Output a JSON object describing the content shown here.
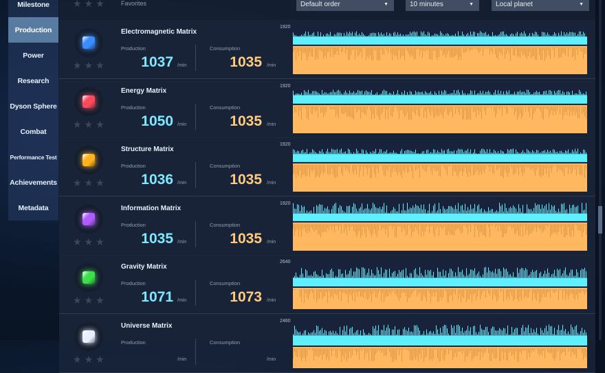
{
  "sidebar": {
    "items": [
      {
        "label": "Milestone",
        "active": false
      },
      {
        "label": "Production",
        "active": true
      },
      {
        "label": "Power",
        "active": false
      },
      {
        "label": "Research",
        "active": false
      },
      {
        "label": "Dyson Sphere",
        "active": false
      },
      {
        "label": "Combat",
        "active": false
      },
      {
        "label": "Performance Test",
        "active": false
      },
      {
        "label": "Achievements",
        "active": false
      },
      {
        "label": "Metadata",
        "active": false
      }
    ]
  },
  "toolbar": {
    "favorites_label": "Favorites",
    "sort": "Default order",
    "time_range": "10 minutes",
    "scope": "Local planet"
  },
  "labels": {
    "production": "Production",
    "consumption": "Consumption",
    "unit": "/min"
  },
  "colors": {
    "production": "#5ff0ff",
    "consumption": "#ffb860"
  },
  "items": [
    {
      "name": "Electromagnetic Matrix",
      "production": "1037",
      "consumption": "1035",
      "ymax": "1920",
      "color": "#3a8cff",
      "icon": "blue-cube-icon",
      "chart_prod": 0.65,
      "chart_cons": 0.64
    },
    {
      "name": "Energy Matrix",
      "production": "1050",
      "consumption": "1035",
      "ymax": "1920",
      "color": "#ff4a5e",
      "icon": "red-cube-icon",
      "chart_prod": 0.66,
      "chart_cons": 0.64
    },
    {
      "name": "Structure Matrix",
      "production": "1036",
      "consumption": "1035",
      "ymax": "1920",
      "color": "#ffb21c",
      "icon": "yellow-cube-icon",
      "chart_prod": 0.65,
      "chart_cons": 0.64
    },
    {
      "name": "Information Matrix",
      "production": "1035",
      "consumption": "1035",
      "ymax": "1920",
      "color": "#b05cff",
      "icon": "purple-cube-icon",
      "chart_prod": 0.64,
      "chart_cons": 0.64
    },
    {
      "name": "Gravity Matrix",
      "production": "1071",
      "consumption": "1073",
      "ymax": "2640",
      "color": "#3ee04a",
      "icon": "green-cube-icon",
      "chart_prod": 0.52,
      "chart_cons": 0.5
    },
    {
      "name": "Universe Matrix",
      "production": "",
      "consumption": "",
      "ymax": "2460",
      "color": "#e8f0ff",
      "icon": "white-cube-icon",
      "chart_prod": 0.55,
      "chart_cons": 0.5
    }
  ]
}
